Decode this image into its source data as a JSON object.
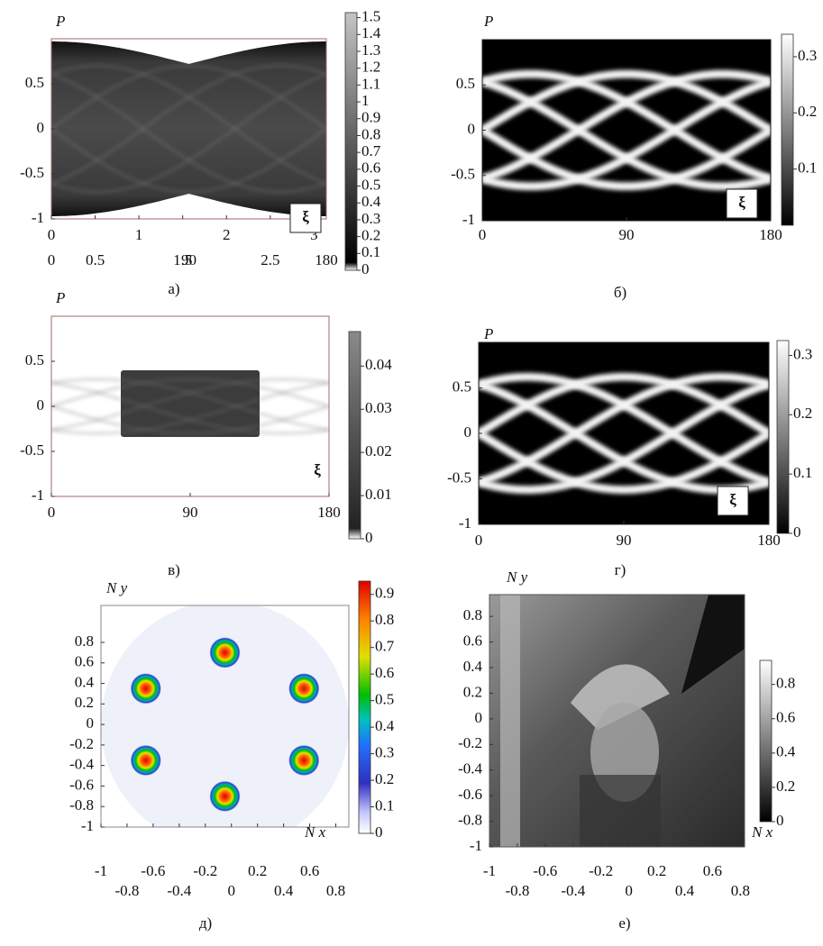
{
  "chart_data": [
    {
      "type": "heatmap",
      "panel_label": "а)",
      "ylabel": "P",
      "annotation": "ξ",
      "colormap": "gray",
      "xlim": [
        0,
        3.14
      ],
      "xticks": [
        0,
        0.5,
        1,
        1.5,
        2,
        2.5,
        3
      ],
      "x2lim": [
        0,
        180
      ],
      "x2ticks": [
        0,
        90,
        180
      ],
      "ylim": [
        -1,
        1
      ],
      "yticks": [
        -1,
        -0.5,
        0,
        0.5
      ],
      "clim": [
        0,
        1.53
      ],
      "cticks": [
        0,
        0.1,
        0.2,
        0.3,
        0.4,
        0.5,
        0.6,
        0.7,
        0.8,
        0.9,
        1,
        1.1,
        1.2,
        1.3,
        1.4,
        1.5
      ]
    },
    {
      "type": "heatmap",
      "panel_label": "б)",
      "ylabel": "P",
      "annotation": "ξ",
      "colormap": "gray",
      "xlim": [
        0,
        180
      ],
      "xticks": [
        0,
        90,
        180
      ],
      "ylim": [
        -1,
        1
      ],
      "yticks": [
        -1,
        -0.5,
        0,
        0.5
      ],
      "clim": [
        0,
        0.34
      ],
      "cticks": [
        0.1,
        0.2,
        0.3
      ]
    },
    {
      "type": "heatmap",
      "panel_label": "в)",
      "ylabel": "P",
      "annotation": "ξ",
      "colormap": "gray",
      "xlim": [
        0,
        180
      ],
      "xticks": [
        0,
        90,
        180
      ],
      "ylim": [
        -1,
        1
      ],
      "yticks": [
        -1,
        -0.5,
        0,
        0.5
      ],
      "clim": [
        0,
        0.048
      ],
      "cticks": [
        0,
        0.01,
        0.02,
        0.03,
        0.04
      ]
    },
    {
      "type": "heatmap",
      "panel_label": "г)",
      "ylabel": "P",
      "annotation": "ξ",
      "colormap": "gray",
      "xlim": [
        0,
        180
      ],
      "xticks": [
        0,
        90,
        180
      ],
      "ylim": [
        -1,
        1
      ],
      "yticks": [
        -1,
        -0.5,
        0,
        0.5
      ],
      "clim": [
        0,
        0.325
      ],
      "cticks": [
        0,
        0.1,
        0.2,
        0.3
      ]
    },
    {
      "type": "heatmap",
      "panel_label": "д)",
      "ylabel": "N y",
      "xlabel": "N x",
      "colormap": "jet",
      "xlim": [
        -1,
        0.9
      ],
      "xticks": [
        -1,
        -0.8,
        -0.6,
        -0.4,
        -0.2,
        0,
        0.2,
        0.4,
        0.6,
        0.8
      ],
      "ylim": [
        -1,
        1.16
      ],
      "yticks": [
        -1,
        -0.8,
        -0.6,
        -0.4,
        -0.2,
        0,
        0.2,
        0.4,
        0.6,
        0.8
      ],
      "clim": [
        0,
        0.95
      ],
      "cticks": [
        0,
        0.1,
        0.2,
        0.3,
        0.4,
        0.5,
        0.6,
        0.7,
        0.8,
        0.9
      ]
    },
    {
      "type": "heatmap",
      "panel_label": "е)",
      "ylabel": "N y",
      "xlabel": "N x",
      "colormap": "gray",
      "xlim": [
        -1,
        0.83
      ],
      "xticks": [
        -1,
        -0.8,
        -0.6,
        -0.4,
        -0.2,
        0,
        0.2,
        0.4,
        0.6,
        0.8
      ],
      "ylim": [
        -1,
        0.97
      ],
      "yticks": [
        -1,
        -0.8,
        -0.6,
        -0.4,
        -0.2,
        0,
        0.2,
        0.4,
        0.6,
        0.8
      ],
      "clim": [
        0,
        0.94
      ],
      "cticks": [
        0,
        0.2,
        0.4,
        0.6,
        0.8
      ]
    }
  ]
}
